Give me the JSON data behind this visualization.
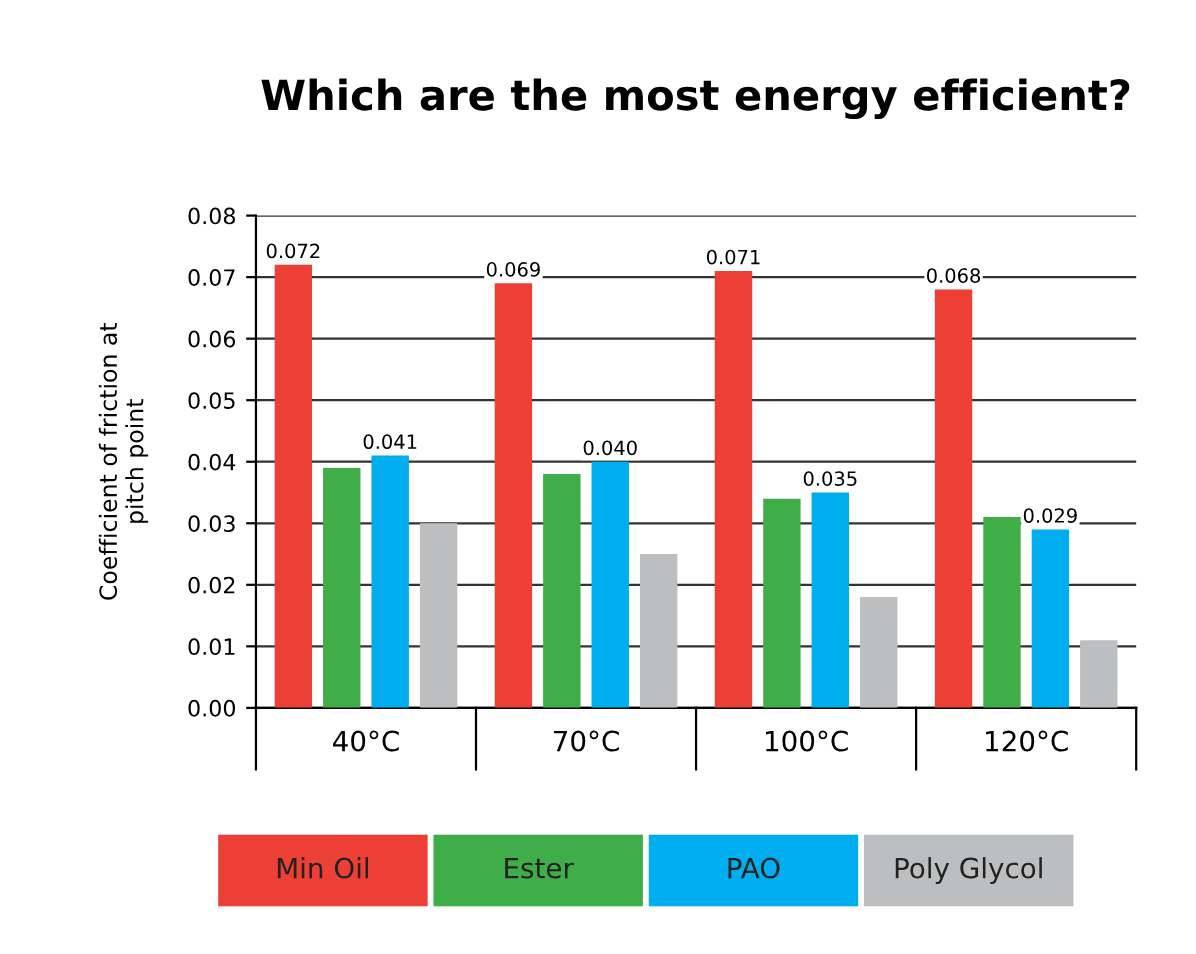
{
  "chart_data": {
    "type": "bar",
    "title": "Which are the most energy efficient?",
    "ylabel": "Coefficient of friction at\npitch point",
    "categories": [
      "40°C",
      "70°C",
      "100°C",
      "120°C"
    ],
    "series": [
      {
        "name": "Min Oil",
        "color": "#ec3f35",
        "values": [
          0.072,
          0.069,
          0.071,
          0.068
        ],
        "value_labels": [
          "0.072",
          "0.069",
          "0.071",
          "0.068"
        ]
      },
      {
        "name": "Ester",
        "color": "#3fae49",
        "values": [
          0.039,
          0.038,
          0.034,
          0.031
        ]
      },
      {
        "name": "PAO",
        "color": "#00adee",
        "values": [
          0.041,
          0.04,
          0.035,
          0.029
        ],
        "value_labels": [
          "0.041",
          "0.040",
          "0.035",
          "0.029"
        ]
      },
      {
        "name": "Poly Glycol",
        "color": "#bcbec0",
        "values": [
          0.03,
          0.025,
          0.018,
          0.011
        ]
      }
    ],
    "ylim": [
      0,
      0.08
    ],
    "yticks": [
      {
        "value": 0,
        "label": "0.00"
      },
      {
        "value": 0.01,
        "label": "0.01"
      },
      {
        "value": 0.02,
        "label": "0.02"
      },
      {
        "value": 0.03,
        "label": "0.03"
      },
      {
        "value": 0.04,
        "label": "0.04"
      },
      {
        "value": 0.05,
        "label": "0.05"
      },
      {
        "value": 0.06,
        "label": "0.06"
      },
      {
        "value": 0.07,
        "label": "0.07"
      },
      {
        "value": 0.08,
        "label": "0.08"
      }
    ],
    "grid": "y",
    "legend": "bottom"
  }
}
